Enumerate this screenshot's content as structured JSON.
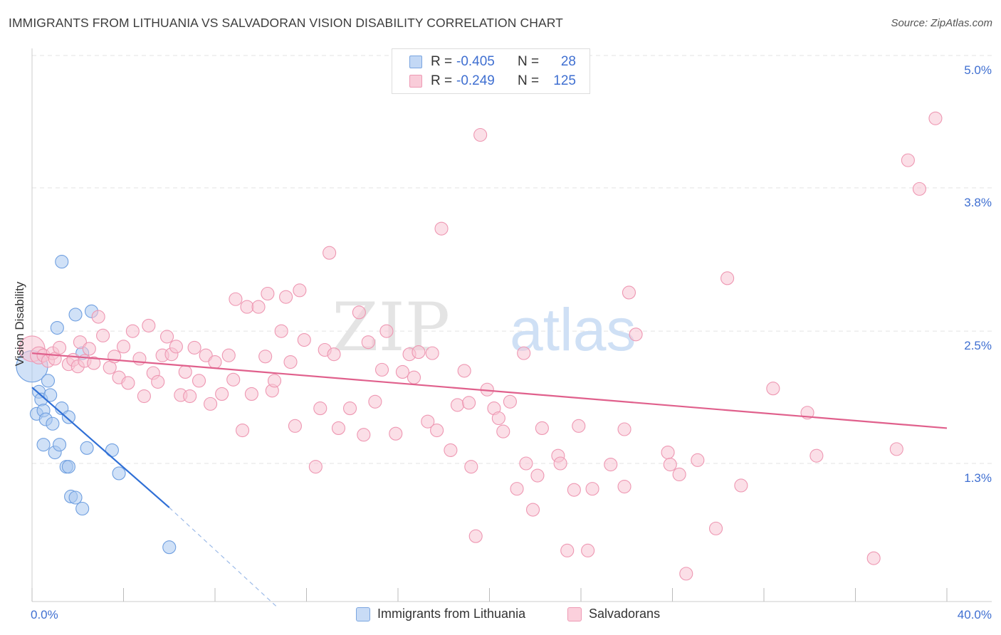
{
  "header": {
    "title": "IMMIGRANTS FROM LITHUANIA VS SALVADORAN VISION DISABILITY CORRELATION CHART",
    "source": "Source: ZipAtlas.com"
  },
  "watermark": {
    "part1": "ZIP",
    "part2": "atlas"
  },
  "legend": {
    "r_label": "R =",
    "n_label": "N =",
    "rows": [
      {
        "r": "-0.405",
        "n": "28",
        "color": "#9ec2f0",
        "border": "#6d9ee0"
      },
      {
        "r": "-0.249",
        "n": "125",
        "color": "#f7b8cb",
        "border": "#ec8eaa"
      }
    ]
  },
  "bottom_legend": [
    {
      "label": "Immigrants from Lithuania",
      "color": "#c9dcf6",
      "border": "#7ba6e0"
    },
    {
      "label": "Salvadorans",
      "color": "#fbd0dc",
      "border": "#ee9ab4"
    }
  ],
  "chart_data": {
    "type": "scatter",
    "title": "IMMIGRANTS FROM LITHUANIA VS SALVADORAN VISION DISABILITY CORRELATION CHART",
    "xlabel": "",
    "ylabel": "Vision Disability",
    "xlim": [
      0,
      40
    ],
    "ylim": [
      0,
      5.2
    ],
    "x_tick_labels": [
      {
        "value": 0,
        "label": "0.0%"
      },
      {
        "value": 40,
        "label": "40.0%"
      }
    ],
    "y_tick_labels": [
      {
        "value": 1.3,
        "label": "1.3%"
      },
      {
        "value": 2.5,
        "label": "2.5%"
      },
      {
        "value": 3.8,
        "label": "3.8%"
      },
      {
        "value": 5.0,
        "label": "5.0%"
      }
    ],
    "colors": {
      "lithuania_fill": "#a9c8f1",
      "lithuania_stroke": "#6f9fe0",
      "lithuania_line": "#2f6fd6",
      "salvadoran_fill": "#f8c4d4",
      "salvadoran_stroke": "#ee97b2",
      "salvadoran_line": "#e0608c",
      "axis_text": "#3f6fd1",
      "grid": "#e3e3e3"
    },
    "series": [
      {
        "name": "Immigrants from Lithuania",
        "points": [
          [
            0.0,
            2.18,
            22
          ],
          [
            0.3,
            1.95,
            9
          ],
          [
            0.2,
            1.75,
            9
          ],
          [
            0.4,
            1.88,
            9
          ],
          [
            0.5,
            1.78,
            9
          ],
          [
            0.6,
            1.7,
            9
          ],
          [
            0.7,
            2.05,
            9
          ],
          [
            0.8,
            1.92,
            9
          ],
          [
            0.9,
            1.66,
            9
          ],
          [
            1.1,
            2.53,
            9
          ],
          [
            1.3,
            1.8,
            9
          ],
          [
            1.0,
            1.4,
            9
          ],
          [
            0.5,
            1.47,
            9
          ],
          [
            1.2,
            1.47,
            9
          ],
          [
            1.5,
            1.27,
            9
          ],
          [
            1.6,
            1.27,
            9
          ],
          [
            1.6,
            1.72,
            9
          ],
          [
            1.9,
            2.65,
            9
          ],
          [
            2.2,
            2.3,
            9
          ],
          [
            2.6,
            2.68,
            9
          ],
          [
            2.4,
            1.44,
            9
          ],
          [
            3.5,
            1.42,
            9
          ],
          [
            3.8,
            1.21,
            9
          ],
          [
            1.7,
            1.0,
            9
          ],
          [
            1.9,
            0.99,
            9
          ],
          [
            2.2,
            0.89,
            9
          ],
          [
            1.3,
            3.13,
            9
          ],
          [
            6.0,
            0.54,
            9
          ]
        ]
      },
      {
        "name": "Salvadorans",
        "points": [
          [
            0.0,
            2.34,
            18
          ],
          [
            0.3,
            2.28,
            12
          ],
          [
            0.5,
            2.28,
            9
          ],
          [
            0.7,
            2.23,
            9
          ],
          [
            0.9,
            2.3,
            9
          ],
          [
            1.0,
            2.25,
            9
          ],
          [
            1.2,
            2.35,
            9
          ],
          [
            1.6,
            2.2,
            9
          ],
          [
            1.8,
            2.24,
            9
          ],
          [
            2.0,
            2.18,
            9
          ],
          [
            2.1,
            2.4,
            9
          ],
          [
            2.3,
            2.23,
            9
          ],
          [
            2.5,
            2.34,
            9
          ],
          [
            2.7,
            2.21,
            9
          ],
          [
            2.9,
            2.63,
            9
          ],
          [
            3.1,
            2.46,
            9
          ],
          [
            3.4,
            2.17,
            9
          ],
          [
            3.6,
            2.27,
            9
          ],
          [
            3.8,
            2.08,
            9
          ],
          [
            4.0,
            2.36,
            9
          ],
          [
            4.2,
            2.03,
            9
          ],
          [
            4.4,
            2.5,
            9
          ],
          [
            4.7,
            2.25,
            9
          ],
          [
            4.9,
            1.91,
            9
          ],
          [
            5.1,
            2.55,
            9
          ],
          [
            5.3,
            2.12,
            9
          ],
          [
            5.5,
            2.04,
            9
          ],
          [
            5.7,
            2.28,
            9
          ],
          [
            5.9,
            2.45,
            9
          ],
          [
            6.1,
            2.29,
            9
          ],
          [
            6.3,
            2.36,
            9
          ],
          [
            6.5,
            1.92,
            9
          ],
          [
            6.7,
            2.13,
            9
          ],
          [
            6.9,
            1.91,
            9
          ],
          [
            7.1,
            2.35,
            9
          ],
          [
            7.3,
            2.05,
            9
          ],
          [
            7.6,
            2.28,
            9
          ],
          [
            7.8,
            1.84,
            9
          ],
          [
            8.0,
            2.22,
            9
          ],
          [
            8.3,
            1.93,
            9
          ],
          [
            8.6,
            2.28,
            9
          ],
          [
            8.8,
            2.06,
            9
          ],
          [
            8.9,
            2.79,
            9
          ],
          [
            9.2,
            1.6,
            9
          ],
          [
            9.4,
            2.72,
            9
          ],
          [
            9.6,
            1.93,
            9
          ],
          [
            9.9,
            2.72,
            9
          ],
          [
            10.2,
            2.27,
            9
          ],
          [
            10.3,
            2.84,
            9
          ],
          [
            10.5,
            1.96,
            9
          ],
          [
            10.6,
            2.05,
            9
          ],
          [
            10.9,
            2.5,
            9
          ],
          [
            11.1,
            2.81,
            9
          ],
          [
            11.3,
            2.22,
            9
          ],
          [
            11.5,
            1.64,
            9
          ],
          [
            11.7,
            2.87,
            9
          ],
          [
            11.9,
            2.42,
            9
          ],
          [
            12.4,
            1.27,
            9
          ],
          [
            12.6,
            1.8,
            9
          ],
          [
            12.8,
            2.33,
            9
          ],
          [
            13.0,
            3.21,
            9
          ],
          [
            13.2,
            2.29,
            9
          ],
          [
            13.4,
            1.62,
            9
          ],
          [
            13.9,
            1.8,
            9
          ],
          [
            14.3,
            2.67,
            9
          ],
          [
            14.5,
            1.56,
            9
          ],
          [
            14.7,
            2.4,
            9
          ],
          [
            15.0,
            1.86,
            9
          ],
          [
            15.3,
            2.15,
            9
          ],
          [
            15.5,
            2.5,
            9
          ],
          [
            15.9,
            1.57,
            9
          ],
          [
            16.2,
            2.13,
            9
          ],
          [
            16.5,
            2.29,
            9
          ],
          [
            16.7,
            2.08,
            9
          ],
          [
            16.9,
            2.31,
            9
          ],
          [
            17.3,
            1.68,
            9
          ],
          [
            17.5,
            2.3,
            9
          ],
          [
            17.7,
            1.6,
            9
          ],
          [
            17.9,
            3.43,
            9
          ],
          [
            18.3,
            1.42,
            9
          ],
          [
            18.6,
            1.83,
            9
          ],
          [
            18.9,
            2.14,
            9
          ],
          [
            19.1,
            1.85,
            9
          ],
          [
            19.2,
            1.27,
            9
          ],
          [
            19.4,
            0.64,
            9
          ],
          [
            19.6,
            4.28,
            9
          ],
          [
            19.9,
            1.97,
            9
          ],
          [
            20.2,
            1.8,
            9
          ],
          [
            20.4,
            1.71,
            9
          ],
          [
            20.6,
            1.59,
            9
          ],
          [
            20.9,
            1.86,
            9
          ],
          [
            21.2,
            1.07,
            9
          ],
          [
            21.5,
            2.3,
            9
          ],
          [
            21.6,
            1.3,
            9
          ],
          [
            21.9,
            0.88,
            9
          ],
          [
            22.1,
            1.19,
            9
          ],
          [
            22.3,
            1.62,
            9
          ],
          [
            23.0,
            1.37,
            9
          ],
          [
            23.1,
            1.3,
            9
          ],
          [
            23.4,
            0.51,
            9
          ],
          [
            23.7,
            1.06,
            9
          ],
          [
            23.9,
            1.64,
            9
          ],
          [
            24.3,
            0.51,
            9
          ],
          [
            24.5,
            1.07,
            9
          ],
          [
            25.3,
            1.29,
            9
          ],
          [
            25.9,
            1.09,
            9
          ],
          [
            25.9,
            1.61,
            9
          ],
          [
            26.1,
            2.85,
            9
          ],
          [
            26.4,
            2.47,
            9
          ],
          [
            27.8,
            1.4,
            9
          ],
          [
            27.9,
            1.29,
            9
          ],
          [
            28.3,
            1.2,
            9
          ],
          [
            28.6,
            0.3,
            9
          ],
          [
            29.1,
            1.33,
            9
          ],
          [
            29.9,
            0.71,
            9
          ],
          [
            30.4,
            2.98,
            9
          ],
          [
            31.0,
            1.1,
            9
          ],
          [
            32.4,
            1.98,
            9
          ],
          [
            33.9,
            1.76,
            9
          ],
          [
            34.3,
            1.37,
            9
          ],
          [
            36.8,
            0.44,
            9
          ],
          [
            37.8,
            1.43,
            9
          ],
          [
            38.3,
            4.05,
            9
          ],
          [
            38.8,
            3.79,
            9
          ],
          [
            39.5,
            4.43,
            9
          ]
        ]
      }
    ],
    "trend_lines": [
      {
        "series": "Immigrants from Lithuania",
        "x_start": 0,
        "y_start": 1.99,
        "x_solid_end": 6.0,
        "y_solid_end": 0.9,
        "x_dash_end": 10.7,
        "y_dash_end": 0.0
      },
      {
        "series": "Salvadorans",
        "x_start": 0,
        "y_start": 2.3,
        "x_end": 40,
        "y_end": 1.62
      }
    ]
  }
}
